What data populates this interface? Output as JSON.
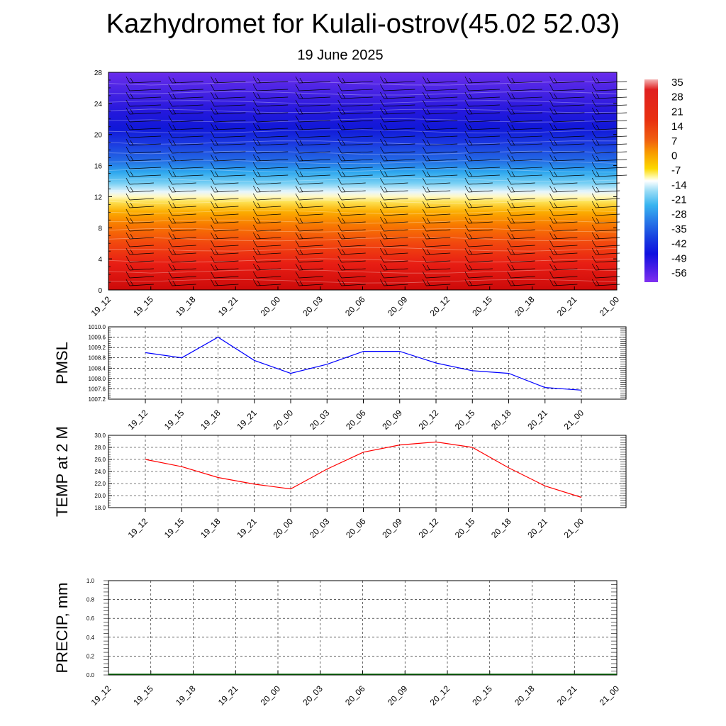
{
  "title": "Kazhydromet for Kulali-ostrov(45.02 52.03)",
  "subtitle": "19 June 2025",
  "x_labels": [
    "19_12",
    "19_15",
    "19_18",
    "19_21",
    "20_00",
    "20_03",
    "20_06",
    "20_09",
    "20_12",
    "20_15",
    "20_18",
    "20_21",
    "21_00"
  ],
  "chart_data": [
    {
      "type": "heatmap",
      "title": "",
      "xlabel": "",
      "ylabel": "",
      "x": [
        "19_12",
        "19_15",
        "19_18",
        "19_21",
        "20_00",
        "20_03",
        "20_06",
        "20_09",
        "20_12",
        "20_15",
        "20_18",
        "20_21",
        "21_00"
      ],
      "y_ticks": [
        0,
        4,
        8,
        12,
        16,
        20,
        24,
        28
      ],
      "ylim": [
        0,
        28
      ],
      "colorbar_labels": [
        "35",
        "28",
        "21",
        "14",
        "7",
        "0",
        "-7",
        "-14",
        "-21",
        "-28",
        "-35",
        "-42",
        "-49",
        "-56"
      ],
      "colors": {
        "levels": [
          "#f0a0a0",
          "#d01010",
          "#e82020",
          "#f04010",
          "#f06000",
          "#f89000",
          "#fcc000",
          "#fcf060",
          "#ffffff",
          "#80d8f8",
          "#30b0f0",
          "#2070e8",
          "#1030e0",
          "#3010e0",
          "#7828f0"
        ]
      },
      "wind_barbs": true
    },
    {
      "type": "line",
      "ylabel": "PMSL",
      "x": [
        "19_12",
        "19_15",
        "19_18",
        "19_21",
        "20_00",
        "20_03",
        "20_06",
        "20_09",
        "20_12",
        "20_15",
        "20_18",
        "20_21",
        "21_00"
      ],
      "series": [
        {
          "values": [
            1009.0,
            1008.8,
            1009.6,
            1008.7,
            1008.2,
            1008.55,
            1009.05,
            1009.05,
            1008.6,
            1008.3,
            1008.2,
            1007.65,
            1007.55
          ],
          "color": "#0000ff"
        }
      ],
      "ylim": [
        1007.2,
        1010.0
      ],
      "y_ticks": [
        "1007.2",
        "1007.6",
        "1008.0",
        "1008.4",
        "1008.8",
        "1009.2",
        "1009.6",
        "1010.0"
      ],
      "grid": true
    },
    {
      "type": "line",
      "ylabel": "TEMP at 2 M",
      "x": [
        "19_12",
        "19_15",
        "19_18",
        "19_21",
        "20_00",
        "20_03",
        "20_06",
        "20_09",
        "20_12",
        "20_15",
        "20_18",
        "20_21",
        "21_00"
      ],
      "series": [
        {
          "values": [
            26.0,
            24.8,
            23.0,
            21.9,
            21.1,
            24.4,
            27.2,
            28.4,
            28.9,
            28.0,
            24.6,
            21.6,
            19.7
          ],
          "color": "#ff0000"
        }
      ],
      "ylim": [
        18.0,
        30.0
      ],
      "y_ticks": [
        "18.0",
        "20.0",
        "22.0",
        "24.0",
        "26.0",
        "28.0",
        "30.0"
      ],
      "grid": true
    },
    {
      "type": "line",
      "ylabel": "PRECIP, mm",
      "x": [
        "19_12",
        "19_15",
        "19_18",
        "19_21",
        "20_00",
        "20_03",
        "20_06",
        "20_09",
        "20_12",
        "20_15",
        "20_18",
        "20_21",
        "21_00"
      ],
      "series": [
        {
          "values": [
            0,
            0,
            0,
            0,
            0,
            0,
            0,
            0,
            0,
            0,
            0,
            0,
            0
          ],
          "color": "#006400"
        }
      ],
      "ylim": [
        0.0,
        1.0
      ],
      "y_ticks": [
        "0.0",
        "0.2",
        "0.4",
        "0.6",
        "0.8",
        "1.0"
      ],
      "grid": true
    }
  ]
}
